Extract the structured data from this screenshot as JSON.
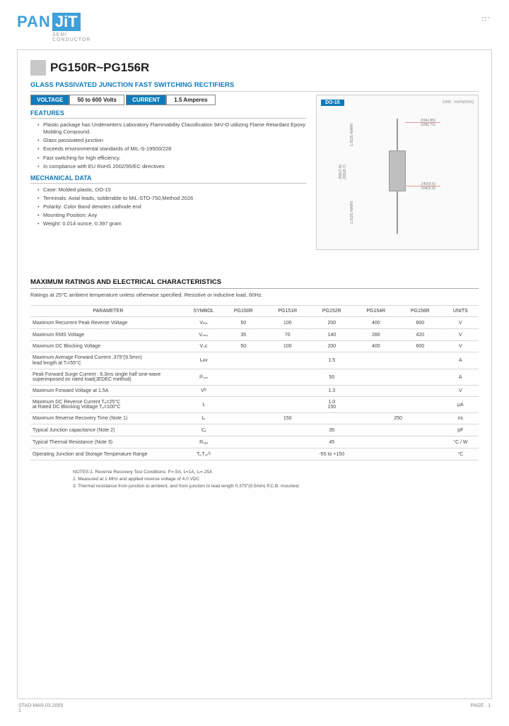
{
  "brand": {
    "left": "PAN",
    "right": "JiT",
    "sub": "SEMI\nCONDUCTOR"
  },
  "title": "PG150R~PG156R",
  "subtitle": "GLASS PASSIVATED JUNCTION FAST SWITCHING RECTIFIERS",
  "spec": {
    "voltage_label": "VOLTAGE",
    "voltage_val": "50 to 600 Volts",
    "current_label": "CURRENT",
    "current_val": "1.5 Amperes"
  },
  "package": {
    "label": "DO-15",
    "unit": "Unit : inch(mm)",
    "dims": {
      "lead_dia": ".034(.85)\n.028(.71)",
      "lead_len": "1.0(25.4)MIN",
      "body_dia": ".300(7.6)\n.265(6.7)",
      "body_len": ".140(3.6)\n.104(2.6)",
      "lead_len2": "1.0(25.4)MIN"
    }
  },
  "features": {
    "head": "FEATURES",
    "items": [
      "Plastic package has Underwriters Laboratory Flammability Classification 94V-O utilizing Flame Retardant Epoxy Molding Compound.",
      "Glass passivated junction",
      "Exceeds environmental standards of MIL-S-19500/228",
      "Fast switching for high efficiency.",
      "In compliance with EU RoHS 2002/95/EC directives"
    ]
  },
  "mechdata": {
    "head": "MECHANICAL DATA",
    "items": [
      "Case: Molded plastic, DO-15",
      "Terminals: Axial leads, solderable to MIL-STD-750,Method 2026",
      "Polarity: Color Band denotes cathode end",
      "Mounting Position: Any",
      "Weight: 0.014 ounce, 0.397 gram"
    ]
  },
  "ratings": {
    "head": "MAXIMUM RATINGS AND ELECTRICAL CHARACTERISTICS",
    "sub": "Ratings at 25°C ambient temperature unless otherwise specified.  Resistive or inductive load, 60Hz.",
    "columns": [
      "PARAMETER",
      "SYMBOL",
      "PG150R",
      "PG151R",
      "PG152R",
      "PG154R",
      "PG156R",
      "UNITS"
    ],
    "rows": [
      {
        "param": "Maximum Recurrent Peak Reverse Voltage",
        "sym": "Vₗₗₘ",
        "cells": [
          "50",
          "100",
          "200",
          "400",
          "600"
        ],
        "unit": "V",
        "span": false
      },
      {
        "param": "Maximum RMS Voltage",
        "sym": "Vᵣₘₛ",
        "cells": [
          "35",
          "70",
          "140",
          "280",
          "420"
        ],
        "unit": "V",
        "span": false
      },
      {
        "param": "Maximum DC Blocking Voltage",
        "sym": "V₀ᴄ",
        "cells": [
          "50",
          "100",
          "200",
          "400",
          "600"
        ],
        "unit": "V",
        "span": false
      },
      {
        "param": "Maximum Average Forward Current .375\"(9.5mm)\nlead length at Tₗ=55°C",
        "sym": "I₁ᴀᴠ",
        "val": "1.5",
        "unit": "A",
        "span": true
      },
      {
        "param": "Peak Forward Surge Current : 8.3ms single half sine-wave superimposed on rated load(JEDEC method)",
        "sym": "Iᴰₛₘ",
        "val": "50",
        "unit": "A",
        "span": true
      },
      {
        "param": "Maximum Forward Voltage at 1.5A",
        "sym": "Vᴰ",
        "val": "1.3",
        "unit": "V",
        "span": true
      },
      {
        "param": "Maximum DC Reverse Current Tₑ=25°C\nat Rated DC Blocking Voltage  Tₑ=100°C",
        "sym": "Iᵣ",
        "val": "1.0\n150",
        "unit": "µA",
        "span": true
      },
      {
        "param": "Maximum Reverse Recovery Time (Note 1)",
        "sym": "tᵣᵣ",
        "cells": [
          "",
          "150",
          "",
          "",
          "250"
        ],
        "unit": "ns",
        "span": false,
        "group": [
          3,
          2
        ]
      },
      {
        "param": "Typical Junction capacitance (Note 2)",
        "sym": "Cⱼ",
        "val": "35",
        "unit": "pF",
        "span": true
      },
      {
        "param": "Typical Thermal Resistance (Note 3)",
        "sym": "R₀ⱼₐ",
        "val": "45",
        "unit": "°C / W",
        "span": true
      },
      {
        "param": "Operating Junction and Storage Temperature Range",
        "sym": "Tⱼ,Tₛₜᴳ",
        "val": "-55 to +150",
        "unit": "°C",
        "span": true
      }
    ]
  },
  "notes": [
    "NOTES:1. Reverse Recovery Test Conditions: Iᴰ=.5A, Iᵣ=1A, Iᵣᵣ=.25A",
    "2. Measured at 1 MHz and applied reverse voltage of 4.0 VDC",
    "3. Thermal resistance from junction to ambient, and from junction to lead length 0.375\"(9.5mm) P.C.B. mounted."
  ],
  "footer": {
    "left": "STAD-MAR.03.2009",
    "right": "PAGE .  1",
    "corner": "1"
  }
}
